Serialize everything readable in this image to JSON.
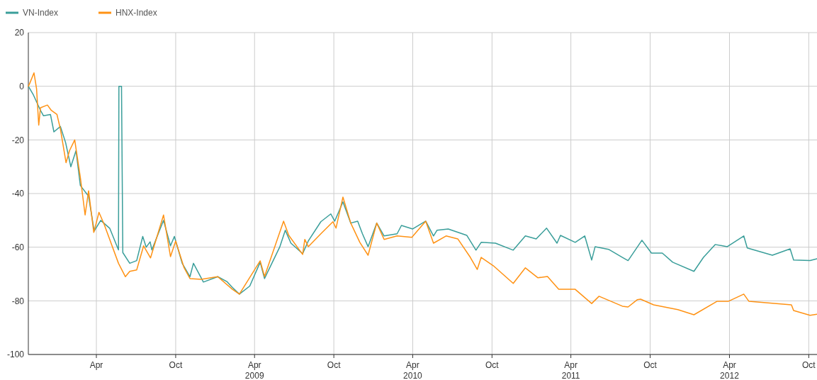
{
  "chart_data": {
    "type": "line",
    "legend": "top left",
    "grid": true,
    "line_style": "solid",
    "xlim": [
      "2007-10-27",
      "2012-10-20"
    ],
    "xticks": [
      {
        "value": "2008-04-01",
        "label": "Apr"
      },
      {
        "value": "2008-10-01",
        "label": "Oct"
      },
      {
        "value": "2009-04-01",
        "label": "Apr\n2009"
      },
      {
        "value": "2009-10-01",
        "label": "Oct"
      },
      {
        "value": "2010-04-01",
        "label": "Apr\n2010"
      },
      {
        "value": "2010-10-01",
        "label": "Oct"
      },
      {
        "value": "2011-04-01",
        "label": "Apr\n2011"
      },
      {
        "value": "2011-10-01",
        "label": "Oct"
      },
      {
        "value": "2012-04-01",
        "label": "Apr\n2012"
      },
      {
        "value": "2012-10-01",
        "label": "Oct"
      }
    ],
    "ylim": [
      -100,
      20
    ],
    "yticks": [
      -100,
      -80,
      -60,
      -40,
      -20,
      0,
      20
    ],
    "series": [
      {
        "name": "VN-Index",
        "color": "#3a9e9a",
        "x": [
          "2007-10-27",
          "2007-11-07",
          "2007-11-24",
          "2007-12-01",
          "2007-12-17",
          "2007-12-25",
          "2008-01-09",
          "2008-01-21",
          "2008-02-02",
          "2008-02-14",
          "2008-02-24",
          "2008-03-14",
          "2008-03-27",
          "2008-04-11",
          "2008-05-02",
          "2008-05-22",
          "2008-05-23",
          "2008-05-29",
          "2008-06-01",
          "2008-06-17",
          "2008-07-03",
          "2008-07-17",
          "2008-07-25",
          "2008-08-03",
          "2008-08-07",
          "2008-09-03",
          "2008-09-19",
          "2008-09-28",
          "2008-10-16",
          "2008-11-03",
          "2008-11-11",
          "2008-12-04",
          "2009-01-06",
          "2009-01-27",
          "2009-02-09",
          "2009-02-25",
          "2009-03-21",
          "2009-04-14",
          "2009-04-24",
          "2009-05-29",
          "2009-06-11",
          "2009-06-24",
          "2009-07-21",
          "2009-08-03",
          "2009-09-01",
          "2009-09-24",
          "2009-10-03",
          "2009-10-22",
          "2009-11-09",
          "2009-11-25",
          "2009-12-06",
          "2009-12-19",
          "2010-01-08",
          "2010-01-25",
          "2010-02-24",
          "2010-03-06",
          "2010-04-01",
          "2010-05-01",
          "2010-05-19",
          "2010-05-27",
          "2010-06-22",
          "2010-08-04",
          "2010-08-25",
          "2010-09-06",
          "2010-10-09",
          "2010-11-19",
          "2010-12-17",
          "2011-01-11",
          "2011-02-04",
          "2011-02-28",
          "2011-03-08",
          "2011-04-11",
          "2011-05-03",
          "2011-05-19",
          "2011-05-27",
          "2011-06-27",
          "2011-07-29",
          "2011-08-11",
          "2011-09-12",
          "2011-10-04",
          "2011-10-29",
          "2011-11-22",
          "2012-01-10",
          "2012-02-01",
          "2012-02-28",
          "2012-03-27",
          "2012-05-04",
          "2012-05-12",
          "2012-07-09",
          "2012-08-19",
          "2012-08-27",
          "2012-10-04",
          "2012-10-20"
        ],
        "values": [
          0,
          -3,
          -9,
          -11,
          -10.5,
          -17,
          -15,
          -21,
          -30,
          -24,
          -37,
          -41,
          -54,
          -50,
          -53,
          -61,
          0,
          0,
          -62,
          -66,
          -65,
          -56,
          -60,
          -58,
          -61,
          -50,
          -59.5,
          -56,
          -66,
          -71,
          -66,
          -73,
          -71,
          -72.8,
          -75,
          -77.5,
          -74.5,
          -65.6,
          -71.7,
          -60,
          -53.7,
          -58.5,
          -62.4,
          -57.7,
          -50.5,
          -47.6,
          -50.3,
          -43.1,
          -51,
          -50.3,
          -55,
          -59.8,
          -51,
          -55.8,
          -55,
          -51.9,
          -53.2,
          -50.3,
          -55.8,
          -53.7,
          -53.2,
          -55.6,
          -61.1,
          -58.2,
          -58.5,
          -61.1,
          -55.8,
          -56.9,
          -52.9,
          -58.5,
          -55.6,
          -58.2,
          -55.8,
          -64.8,
          -59.8,
          -60.8,
          -63.8,
          -65,
          -57.4,
          -62.2,
          -62.2,
          -65.6,
          -69,
          -63.8,
          -59,
          -59.8,
          -55.8,
          -60.3,
          -63,
          -60.6,
          -64.8,
          -65,
          -64.3
        ]
      },
      {
        "name": "HNX-Index",
        "color": "#ff9214",
        "x": [
          "2007-10-27",
          "2007-10-30",
          "2007-11-09",
          "2007-11-15",
          "2007-11-20",
          "2007-11-24",
          "2007-12-10",
          "2007-12-19",
          "2008-01-01",
          "2008-01-09",
          "2008-01-22",
          "2008-01-30",
          "2008-02-11",
          "2008-02-24",
          "2008-03-06",
          "2008-03-14",
          "2008-03-26",
          "2008-04-07",
          "2008-04-19",
          "2008-05-22",
          "2008-06-07",
          "2008-06-17",
          "2008-07-03",
          "2008-07-19",
          "2008-08-04",
          "2008-09-03",
          "2008-09-19",
          "2008-10-01",
          "2008-10-20",
          "2008-11-03",
          "2008-11-29",
          "2009-01-06",
          "2009-02-09",
          "2009-02-25",
          "2009-04-14",
          "2009-04-24",
          "2009-06-07",
          "2009-06-19",
          "2009-07-21",
          "2009-07-26",
          "2009-08-03",
          "2009-09-01",
          "2009-09-29",
          "2009-10-06",
          "2009-10-22",
          "2009-11-09",
          "2009-11-30",
          "2009-12-19",
          "2010-01-08",
          "2010-01-25",
          "2010-02-24",
          "2010-03-30",
          "2010-05-01",
          "2010-05-19",
          "2010-06-17",
          "2010-07-14",
          "2010-08-12",
          "2010-08-28",
          "2010-09-06",
          "2010-10-04",
          "2010-11-19",
          "2010-12-17",
          "2011-01-15",
          "2011-02-06",
          "2011-03-04",
          "2011-04-11",
          "2011-05-19",
          "2011-06-05",
          "2011-07-29",
          "2011-08-11",
          "2011-09-01",
          "2011-09-09",
          "2011-10-09",
          "2011-12-04",
          "2012-01-10",
          "2012-03-03",
          "2012-03-29",
          "2012-05-04",
          "2012-05-16",
          "2012-07-14",
          "2012-08-22",
          "2012-08-27",
          "2012-10-04",
          "2012-10-20"
        ],
        "values": [
          0,
          1,
          5,
          -1,
          -14.5,
          -8,
          -7,
          -9,
          -10.5,
          -16,
          -28.5,
          -24,
          -20,
          -34,
          -48,
          -39,
          -54.5,
          -47,
          -51.5,
          -66,
          -71,
          -69,
          -68.5,
          -59.5,
          -64,
          -48,
          -63.5,
          -57.7,
          -67.5,
          -71.7,
          -72,
          -71,
          -75.7,
          -77.5,
          -65.1,
          -70.9,
          -50.3,
          -55.6,
          -62.7,
          -57.1,
          -59.8,
          -55,
          -50.5,
          -52.9,
          -41.3,
          -51,
          -58.2,
          -63,
          -51,
          -57.1,
          -55.8,
          -56.3,
          -50.3,
          -58.5,
          -55.8,
          -56.9,
          -63.8,
          -68.3,
          -63.8,
          -66.9,
          -73.5,
          -67.7,
          -71.4,
          -70.9,
          -75.7,
          -75.7,
          -81,
          -78.3,
          -82,
          -82.3,
          -79.6,
          -79.4,
          -81.5,
          -83.3,
          -85.2,
          -80.2,
          -80.2,
          -77.5,
          -80.2,
          -81,
          -81.5,
          -83.6,
          -85.4,
          -85
        ]
      }
    ]
  }
}
